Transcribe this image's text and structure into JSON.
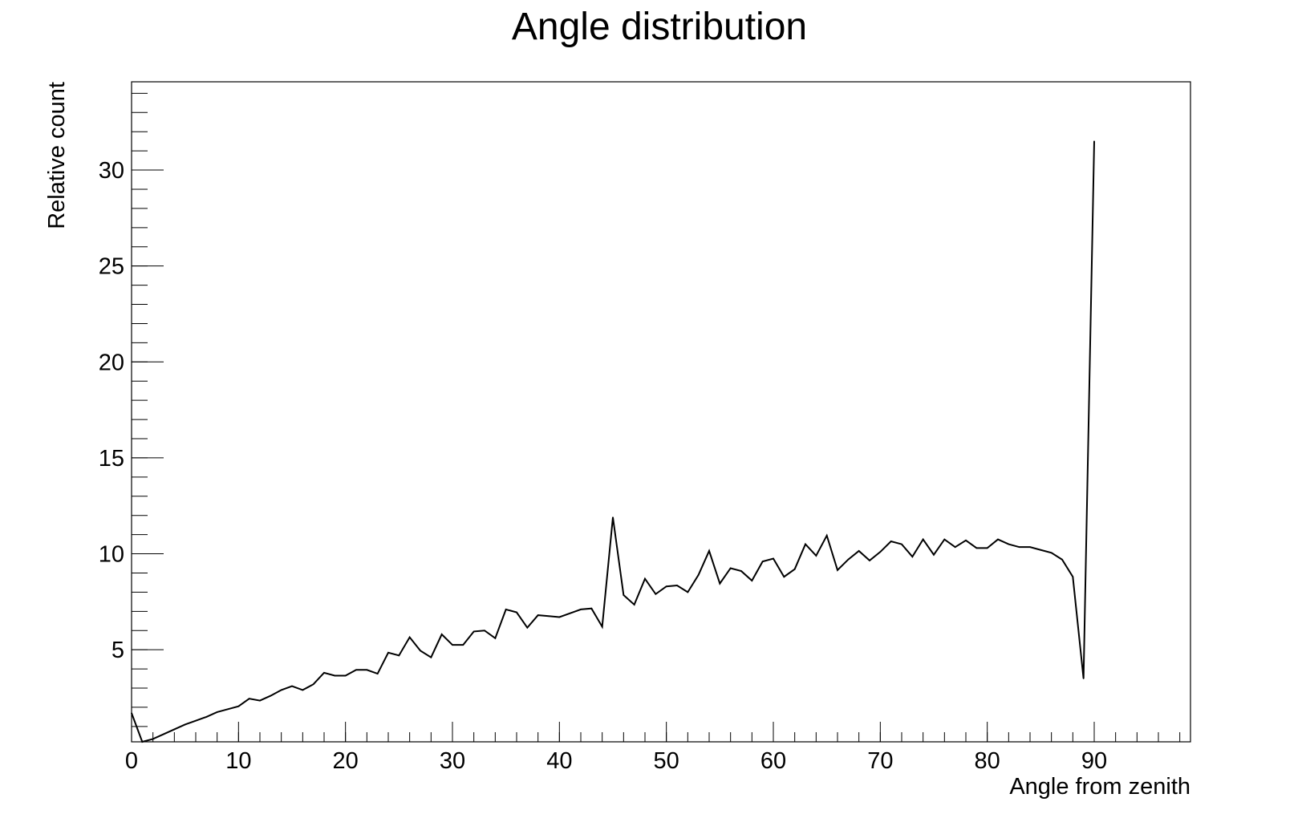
{
  "chart_data": {
    "type": "line",
    "title": "Angle distribution",
    "xlabel": "Angle from zenith",
    "ylabel": "Relative count",
    "xlim": [
      0,
      99
    ],
    "ylim": [
      0.2,
      34.6
    ],
    "x_ticks": [
      0,
      10,
      20,
      30,
      40,
      50,
      60,
      70,
      80,
      90
    ],
    "y_ticks": [
      5,
      10,
      15,
      20,
      25,
      30
    ],
    "grid": false,
    "line_color": "#000000",
    "series": [
      {
        "x": [
          0,
          1,
          2,
          3,
          4,
          5,
          6,
          7,
          8,
          9,
          10,
          11,
          12,
          13,
          14,
          15,
          16,
          17,
          18,
          19,
          20,
          21,
          22,
          23,
          24,
          25,
          26,
          27,
          28,
          29,
          30,
          31,
          32,
          33,
          34,
          35,
          36,
          37,
          38,
          39,
          40,
          41,
          42,
          43,
          44,
          45,
          46,
          47,
          48,
          49,
          50,
          51,
          52,
          53,
          54,
          55,
          56,
          57,
          58,
          59,
          60,
          61,
          62,
          63,
          64,
          65,
          66,
          67,
          68,
          69,
          70,
          71,
          72,
          73,
          74,
          75,
          76,
          77,
          78,
          79,
          80,
          81,
          82,
          83,
          84,
          85,
          86,
          87,
          88,
          89,
          90
        ],
        "values": [
          1.7,
          0.1,
          0.35,
          0.6,
          0.85,
          1.1,
          1.3,
          1.5,
          1.75,
          1.9,
          2.05,
          2.45,
          2.35,
          2.6,
          2.9,
          3.1,
          2.9,
          3.2,
          3.8,
          3.65,
          3.65,
          3.95,
          3.95,
          3.75,
          4.85,
          4.7,
          5.65,
          4.95,
          4.6,
          5.8,
          5.25,
          5.25,
          5.95,
          6.0,
          5.6,
          7.1,
          6.95,
          6.15,
          6.8,
          6.75,
          6.7,
          6.9,
          7.1,
          7.15,
          6.2,
          11.9,
          7.85,
          7.35,
          8.7,
          7.9,
          8.3,
          8.35,
          8.0,
          8.9,
          10.15,
          8.45,
          9.25,
          9.1,
          8.6,
          9.6,
          9.75,
          8.8,
          9.2,
          10.5,
          9.9,
          10.95,
          9.15,
          9.7,
          10.15,
          9.65,
          10.1,
          10.65,
          10.5,
          9.85,
          10.75,
          9.95,
          10.75,
          10.35,
          10.7,
          10.3,
          10.3,
          10.75,
          10.5,
          10.35,
          10.35,
          10.2,
          10.05,
          9.7,
          8.8,
          3.5,
          31.5
        ]
      }
    ]
  }
}
